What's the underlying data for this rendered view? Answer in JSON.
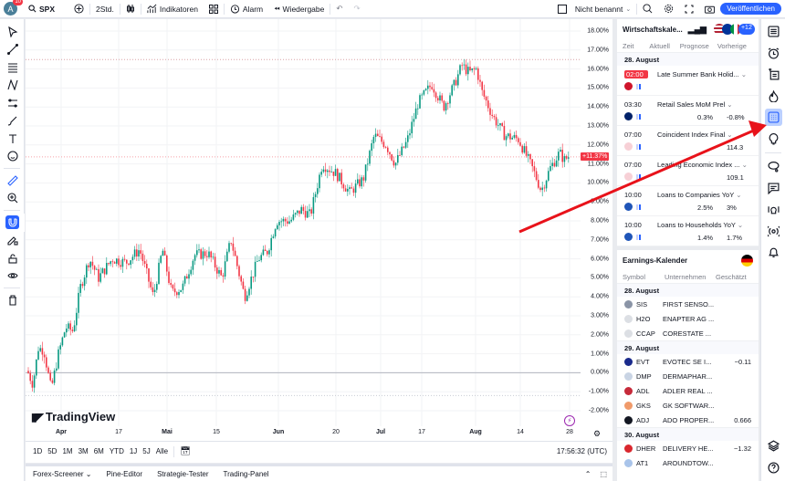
{
  "topbar": {
    "avatar_letter": "A",
    "notif_count": "10",
    "symbol": "SPX",
    "interval": "2Std.",
    "indicators": "Indikatoren",
    "alert": "Alarm",
    "replay": "Wiedergabe",
    "layout_name": "Nicht benannt",
    "publish": "Veröffentlichen"
  },
  "chart": {
    "y_labels": [
      "18.00%",
      "17.00%",
      "16.00%",
      "15.00%",
      "14.00%",
      "13.00%",
      "12.00%",
      "11.00%",
      "10.00%",
      "9.00%",
      "8.00%",
      "7.00%",
      "6.00%",
      "5.00%",
      "4.00%",
      "3.00%",
      "2.00%",
      "1.00%",
      "0.00%",
      "-1.00%",
      "-2.00%"
    ],
    "current_value": "+11.37%",
    "x_labels": [
      {
        "t": "Apr",
        "x": 39,
        "bold": true
      },
      {
        "t": "17",
        "x": 102,
        "bold": false
      },
      {
        "t": "Mai",
        "x": 155,
        "bold": true
      },
      {
        "t": "15",
        "x": 209,
        "bold": false
      },
      {
        "t": "Jun",
        "x": 277,
        "bold": true
      },
      {
        "t": "20",
        "x": 340,
        "bold": false
      },
      {
        "t": "Jul",
        "x": 389,
        "bold": true
      },
      {
        "t": "17",
        "x": 434,
        "bold": false
      },
      {
        "t": "Aug",
        "x": 493,
        "bold": true
      },
      {
        "t": "14",
        "x": 542,
        "bold": false
      },
      {
        "t": "28",
        "x": 596,
        "bold": false
      }
    ],
    "logo": "TradingView"
  },
  "chart_data": {
    "type": "candlestick",
    "symbol": "SPX",
    "unit": "% change",
    "ylim": [
      -2.5,
      18.5
    ],
    "current": 11.37,
    "x_ticks": [
      "Apr",
      "17",
      "Mai",
      "15",
      "Jun",
      "20",
      "Jul",
      "17",
      "Aug",
      "14",
      "28"
    ]
  },
  "ranges": {
    "items": [
      "1D",
      "5D",
      "1M",
      "3M",
      "6M",
      "YTD",
      "1J",
      "5J",
      "Alle"
    ],
    "time": "17:56:32 (UTC)"
  },
  "bottom_tabs": [
    "Forex-Screener",
    "Pine-Editor",
    "Strategie-Tester",
    "Trading-Panel"
  ],
  "econ": {
    "title": "Wirtschaftskale...",
    "more_count": "+12",
    "cols": [
      "Zeit",
      "Aktuell",
      "Prognose",
      "Vorherige"
    ],
    "day": "28. August",
    "events": [
      {
        "time": "02:00",
        "name": "Late Summer Bank Holid...",
        "forecast": "",
        "previous": "",
        "highlight": true,
        "flag": "#cf142b"
      },
      {
        "time": "03:30",
        "name": "Retail Sales MoM Prel",
        "forecast": "0.3%",
        "previous": "-0.8%",
        "highlight": false,
        "flag": "#012169"
      },
      {
        "time": "07:00",
        "name": "Coincident Index Final",
        "forecast": "",
        "previous": "114.3",
        "highlight": false,
        "flag": "#f7d0d6"
      },
      {
        "time": "07:00",
        "name": "Leading Economic Index ...",
        "forecast": "",
        "previous": "109.1",
        "highlight": false,
        "flag": "#f7d0d6"
      },
      {
        "time": "10:00",
        "name": "Loans to Companies YoY",
        "forecast": "2.5%",
        "previous": "3%",
        "highlight": false,
        "flag": "#1f55b8"
      },
      {
        "time": "10:00",
        "name": "Loans to Households YoY",
        "forecast": "1.4%",
        "previous": "1.7%",
        "highlight": false,
        "flag": "#1f55b8"
      }
    ]
  },
  "earnings": {
    "title": "Earnings-Kalender",
    "cols": [
      "Symbol",
      "Unternehmen",
      "Geschätzt"
    ],
    "days": [
      {
        "day": "28. August",
        "rows": [
          {
            "sym": "SIS",
            "co": "FIRST SENSO...",
            "est": "",
            "c": "#8a94a6"
          },
          {
            "sym": "H2O",
            "co": "ENAPTER AG ...",
            "est": "",
            "c": "#dcdfe4"
          },
          {
            "sym": "CCAP",
            "co": "CORESTATE ...",
            "est": "",
            "c": "#dcdfe4"
          }
        ]
      },
      {
        "day": "29. August",
        "rows": [
          {
            "sym": "EVT",
            "co": "EVOTEC SE I...",
            "est": "−0.11",
            "c": "#1a2a8c"
          },
          {
            "sym": "DMP",
            "co": "DERMAPHAR...",
            "est": "",
            "c": "#c9d4e4"
          },
          {
            "sym": "ADL",
            "co": "ADLER REAL ...",
            "est": "",
            "c": "#c62a3a"
          },
          {
            "sym": "GKS",
            "co": "GK SOFTWAR...",
            "est": "",
            "c": "#f09a6a"
          },
          {
            "sym": "ADJ",
            "co": "ADO PROPER...",
            "est": "0.666",
            "c": "#131722"
          }
        ]
      },
      {
        "day": "30. August",
        "rows": [
          {
            "sym": "DHER",
            "co": "DELIVERY HE...",
            "est": "−1.32",
            "c": "#d9272e"
          },
          {
            "sym": "AT1",
            "co": "AROUNDTOW...",
            "est": "",
            "c": "#a9c4ea"
          }
        ]
      }
    ]
  }
}
